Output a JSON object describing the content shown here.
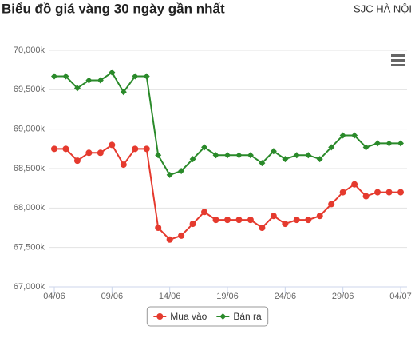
{
  "chart_data": {
    "type": "line",
    "title": "Biểu đồ giá vàng 30 ngày gần nhất",
    "subtitle": "SJC HÀ NỘI",
    "categories": [
      "04/06",
      null,
      null,
      null,
      null,
      "09/06",
      null,
      null,
      null,
      null,
      "14/06",
      null,
      null,
      null,
      null,
      "19/06",
      null,
      null,
      null,
      null,
      "24/06",
      null,
      null,
      null,
      null,
      "29/06",
      null,
      null,
      null,
      null,
      "04/07"
    ],
    "series": [
      {
        "name": "Mua vào",
        "color": "#e53a2e",
        "marker": "circle",
        "values": [
          68750,
          68750,
          68600,
          68700,
          68700,
          68800,
          68550,
          68750,
          68750,
          67750,
          67600,
          67650,
          67800,
          67950,
          67850,
          67850,
          67850,
          67850,
          67750,
          67900,
          67800,
          67850,
          67850,
          67900,
          68050,
          68200,
          68300,
          68150,
          68200,
          68200,
          68200
        ]
      },
      {
        "name": "Bán ra",
        "color": "#2a8a2a",
        "marker": "diamond",
        "values": [
          69670,
          69670,
          69520,
          69620,
          69620,
          69720,
          69470,
          69670,
          69670,
          68670,
          68420,
          68470,
          68620,
          68770,
          68670,
          68670,
          68670,
          68670,
          68570,
          68720,
          68620,
          68670,
          68670,
          68620,
          68770,
          68920,
          68920,
          68770,
          68820,
          68820,
          68820
        ]
      }
    ],
    "ylim": [
      67000,
      70000
    ],
    "yticks": [
      {
        "value": 67000,
        "label": "67,000k"
      },
      {
        "value": 67500,
        "label": "67,500k"
      },
      {
        "value": 68000,
        "label": "68,000k"
      },
      {
        "value": 68500,
        "label": "68,500k"
      },
      {
        "value": 69000,
        "label": "69,000k"
      },
      {
        "value": 69500,
        "label": "69,500k"
      },
      {
        "value": 70000,
        "label": "70,000k"
      }
    ],
    "grid": true,
    "legend": "bottom"
  }
}
